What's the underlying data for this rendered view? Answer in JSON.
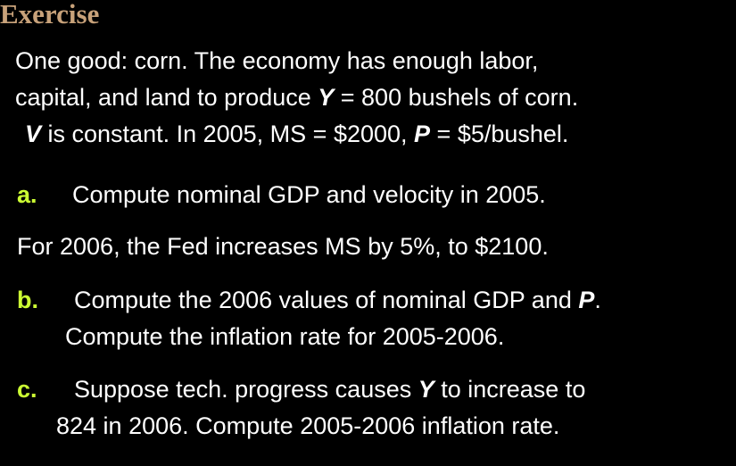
{
  "title": "Exercise",
  "intro": {
    "line1": "One good:  corn.  The economy has enough labor,",
    "line2_pre": "capital, and land to produce ",
    "line2_var": "Y",
    "line2_post": " = 800 bushels of corn.",
    "line3_var1": "V",
    "line3_mid": " is constant.  In 2005, MS = $2000, ",
    "line3_var2": "P",
    "line3_post": " = $5/bushel."
  },
  "item_a": {
    "marker": "a.",
    "text": "Compute nominal GDP and velocity in 2005."
  },
  "fed_note": "For 2006, the Fed increases MS by 5%, to $2100.",
  "item_b": {
    "marker": "b.",
    "line1_pre": "Compute the 2006 values of nominal GDP and ",
    "line1_var": "P",
    "line1_post": ".",
    "line2": "Compute the inflation rate for 2005-2006."
  },
  "item_c": {
    "marker": "c.",
    "line1_pre": "Suppose tech. progress causes ",
    "line1_var": "Y",
    "line1_post": "  to increase to",
    "line2": "824 in 2006.  Compute 2005-2006 inflation rate."
  },
  "colors": {
    "background": "#000000",
    "title": "#c8a27a",
    "text": "#ffffff",
    "marker": "#ccff33"
  }
}
